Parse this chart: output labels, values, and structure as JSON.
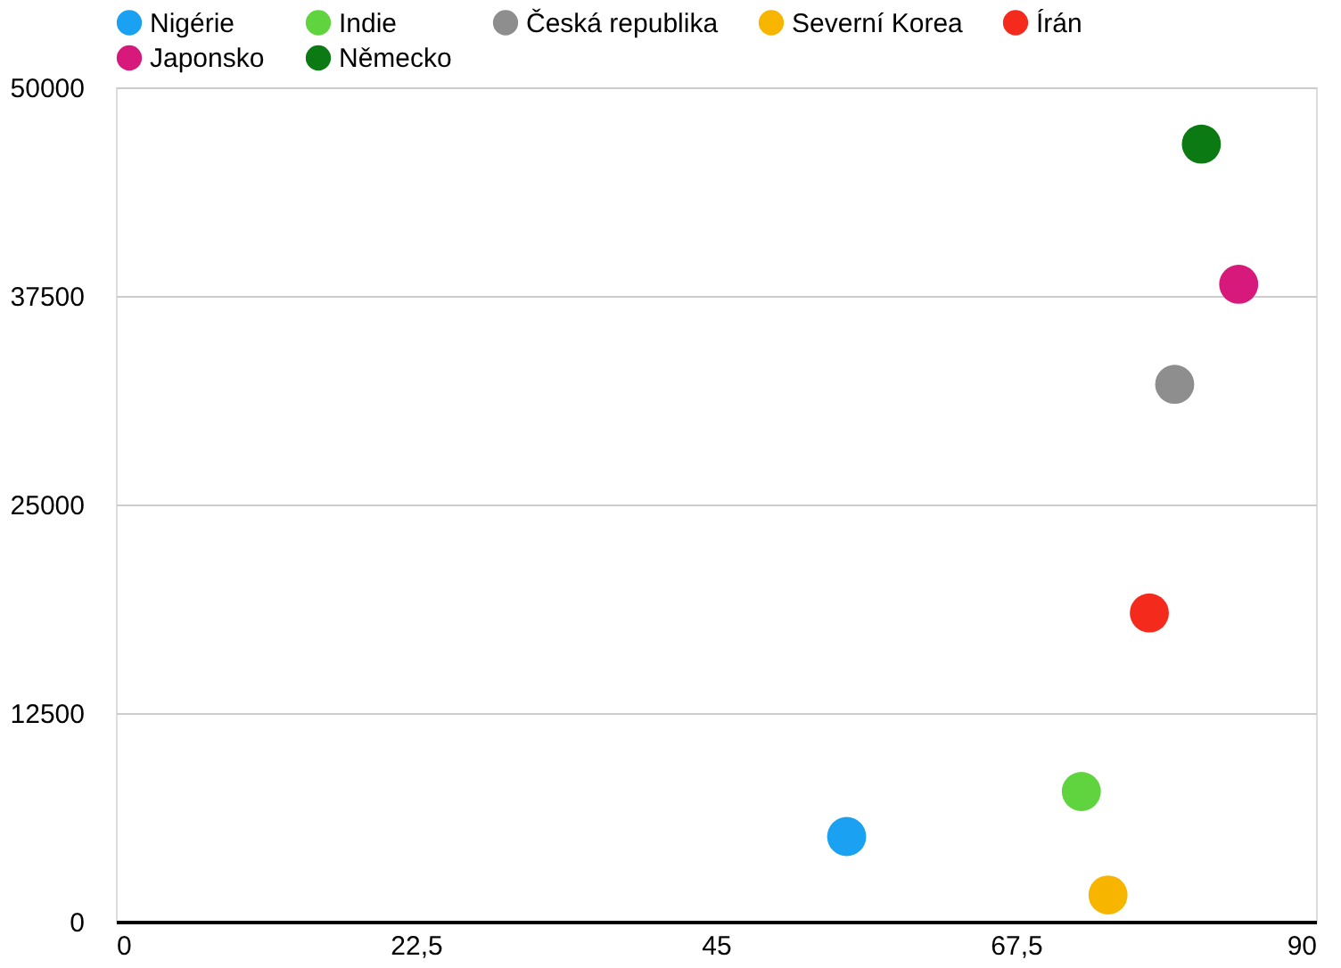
{
  "chart_data": {
    "type": "scatter",
    "series": [
      {
        "name": "Nigérie",
        "color": "#1ba1f2",
        "x": [
          54.8
        ],
        "values": [
          5100
        ]
      },
      {
        "name": "Indie",
        "color": "#5fd43f",
        "x": [
          72.4
        ],
        "values": [
          7800
        ]
      },
      {
        "name": "Česká republika",
        "color": "#8e8e8e",
        "x": [
          79.4
        ],
        "values": [
          32200
        ]
      },
      {
        "name": "Severní Korea",
        "color": "#f7b500",
        "x": [
          74.4
        ],
        "values": [
          1600
        ]
      },
      {
        "name": "Írán",
        "color": "#f42a1c",
        "x": [
          77.5
        ],
        "values": [
          18500
        ]
      },
      {
        "name": "Japonsko",
        "color": "#d6197a",
        "x": [
          84.2
        ],
        "values": [
          38200
        ]
      },
      {
        "name": "Německo",
        "color": "#0b7a13",
        "x": [
          81.4
        ],
        "values": [
          46600
        ]
      }
    ],
    "xlim": [
      0,
      90
    ],
    "xticks": [
      0,
      {
        "value": 22.5,
        "label": "22,5"
      },
      45,
      {
        "value": 67.5,
        "label": "67,5"
      },
      90
    ],
    "ylim": [
      0,
      50000
    ],
    "yticks": [
      0,
      12500,
      25000,
      37500,
      50000
    ],
    "grid": "y",
    "legend": "top",
    "marker": "circle"
  }
}
